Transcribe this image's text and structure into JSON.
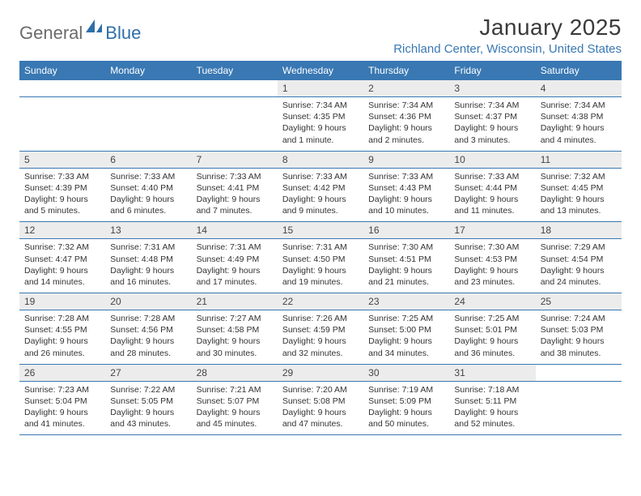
{
  "brand": {
    "general": "General",
    "blue": "Blue"
  },
  "colors": {
    "header_bg": "#3978b3",
    "daynum_bg": "#ececec",
    "location": "#3978b3",
    "logo_gray": "#6b6b6b",
    "logo_blue": "#2f6fa8"
  },
  "title": "January 2025",
  "location": "Richland Center, Wisconsin, United States",
  "weekdays": [
    "Sunday",
    "Monday",
    "Tuesday",
    "Wednesday",
    "Thursday",
    "Friday",
    "Saturday"
  ],
  "weeks": [
    [
      null,
      null,
      null,
      {
        "n": "1",
        "sr": "7:34 AM",
        "ss": "4:35 PM",
        "dh": "9",
        "dm": "1 minute"
      },
      {
        "n": "2",
        "sr": "7:34 AM",
        "ss": "4:36 PM",
        "dh": "9",
        "dm": "2 minutes"
      },
      {
        "n": "3",
        "sr": "7:34 AM",
        "ss": "4:37 PM",
        "dh": "9",
        "dm": "3 minutes"
      },
      {
        "n": "4",
        "sr": "7:34 AM",
        "ss": "4:38 PM",
        "dh": "9",
        "dm": "4 minutes"
      }
    ],
    [
      {
        "n": "5",
        "sr": "7:33 AM",
        "ss": "4:39 PM",
        "dh": "9",
        "dm": "5 minutes"
      },
      {
        "n": "6",
        "sr": "7:33 AM",
        "ss": "4:40 PM",
        "dh": "9",
        "dm": "6 minutes"
      },
      {
        "n": "7",
        "sr": "7:33 AM",
        "ss": "4:41 PM",
        "dh": "9",
        "dm": "7 minutes"
      },
      {
        "n": "8",
        "sr": "7:33 AM",
        "ss": "4:42 PM",
        "dh": "9",
        "dm": "9 minutes"
      },
      {
        "n": "9",
        "sr": "7:33 AM",
        "ss": "4:43 PM",
        "dh": "9",
        "dm": "10 minutes"
      },
      {
        "n": "10",
        "sr": "7:33 AM",
        "ss": "4:44 PM",
        "dh": "9",
        "dm": "11 minutes"
      },
      {
        "n": "11",
        "sr": "7:32 AM",
        "ss": "4:45 PM",
        "dh": "9",
        "dm": "13 minutes"
      }
    ],
    [
      {
        "n": "12",
        "sr": "7:32 AM",
        "ss": "4:47 PM",
        "dh": "9",
        "dm": "14 minutes"
      },
      {
        "n": "13",
        "sr": "7:31 AM",
        "ss": "4:48 PM",
        "dh": "9",
        "dm": "16 minutes"
      },
      {
        "n": "14",
        "sr": "7:31 AM",
        "ss": "4:49 PM",
        "dh": "9",
        "dm": "17 minutes"
      },
      {
        "n": "15",
        "sr": "7:31 AM",
        "ss": "4:50 PM",
        "dh": "9",
        "dm": "19 minutes"
      },
      {
        "n": "16",
        "sr": "7:30 AM",
        "ss": "4:51 PM",
        "dh": "9",
        "dm": "21 minutes"
      },
      {
        "n": "17",
        "sr": "7:30 AM",
        "ss": "4:53 PM",
        "dh": "9",
        "dm": "23 minutes"
      },
      {
        "n": "18",
        "sr": "7:29 AM",
        "ss": "4:54 PM",
        "dh": "9",
        "dm": "24 minutes"
      }
    ],
    [
      {
        "n": "19",
        "sr": "7:28 AM",
        "ss": "4:55 PM",
        "dh": "9",
        "dm": "26 minutes"
      },
      {
        "n": "20",
        "sr": "7:28 AM",
        "ss": "4:56 PM",
        "dh": "9",
        "dm": "28 minutes"
      },
      {
        "n": "21",
        "sr": "7:27 AM",
        "ss": "4:58 PM",
        "dh": "9",
        "dm": "30 minutes"
      },
      {
        "n": "22",
        "sr": "7:26 AM",
        "ss": "4:59 PM",
        "dh": "9",
        "dm": "32 minutes"
      },
      {
        "n": "23",
        "sr": "7:25 AM",
        "ss": "5:00 PM",
        "dh": "9",
        "dm": "34 minutes"
      },
      {
        "n": "24",
        "sr": "7:25 AM",
        "ss": "5:01 PM",
        "dh": "9",
        "dm": "36 minutes"
      },
      {
        "n": "25",
        "sr": "7:24 AM",
        "ss": "5:03 PM",
        "dh": "9",
        "dm": "38 minutes"
      }
    ],
    [
      {
        "n": "26",
        "sr": "7:23 AM",
        "ss": "5:04 PM",
        "dh": "9",
        "dm": "41 minutes"
      },
      {
        "n": "27",
        "sr": "7:22 AM",
        "ss": "5:05 PM",
        "dh": "9",
        "dm": "43 minutes"
      },
      {
        "n": "28",
        "sr": "7:21 AM",
        "ss": "5:07 PM",
        "dh": "9",
        "dm": "45 minutes"
      },
      {
        "n": "29",
        "sr": "7:20 AM",
        "ss": "5:08 PM",
        "dh": "9",
        "dm": "47 minutes"
      },
      {
        "n": "30",
        "sr": "7:19 AM",
        "ss": "5:09 PM",
        "dh": "9",
        "dm": "50 minutes"
      },
      {
        "n": "31",
        "sr": "7:18 AM",
        "ss": "5:11 PM",
        "dh": "9",
        "dm": "52 minutes"
      },
      null
    ]
  ],
  "labels": {
    "sunrise": "Sunrise:",
    "sunset": "Sunset:",
    "daylight_prefix": "Daylight:",
    "hours_word": "hours",
    "and_word": "and"
  }
}
